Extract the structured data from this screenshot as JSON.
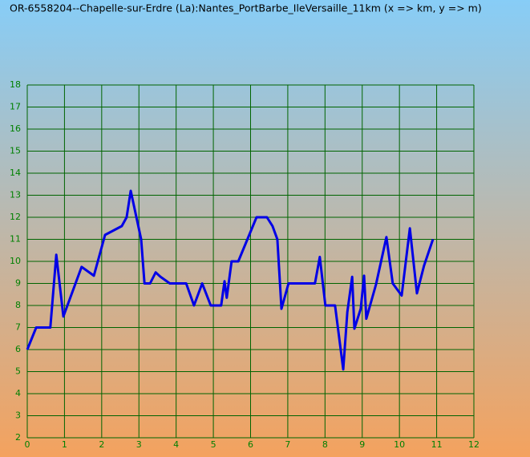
{
  "chart_data": {
    "type": "line",
    "title": "OR-6558204--Chapelle-sur-Erdre (La):Nantes_PortBarbe_IleVersaille_11km (x => km, y => m)",
    "x": [
      0,
      0.24,
      0.62,
      0.78,
      0.97,
      1.46,
      1.79,
      2.09,
      2.54,
      2.67,
      2.78,
      3.06,
      3.15,
      3.3,
      3.45,
      3.58,
      3.83,
      4.27,
      4.48,
      4.7,
      4.93,
      5.21,
      5.3,
      5.36,
      5.49,
      5.67,
      6.16,
      6.44,
      6.59,
      6.72,
      6.83,
      7.02,
      7.73,
      7.86,
      8.01,
      8.27,
      8.49,
      8.6,
      8.73,
      8.79,
      8.96,
      9.05,
      9.11,
      9.37,
      9.65,
      9.82,
      10.06,
      10.28,
      10.47,
      10.66,
      10.9
    ],
    "series": [
      {
        "color": "#0000e6",
        "values": [
          6,
          7,
          7,
          10.3,
          7.5,
          9.75,
          9.35,
          11.2,
          11.6,
          12,
          13.2,
          11,
          9,
          9,
          9.5,
          9.3,
          9,
          9,
          8,
          9,
          8,
          8,
          9.1,
          8.35,
          10,
          10,
          12,
          12,
          11.6,
          11,
          7.85,
          9,
          9,
          10.2,
          8,
          8,
          5.1,
          7.7,
          9.3,
          6.95,
          7.85,
          9.35,
          7.4,
          8.95,
          11.1,
          9,
          8.45,
          11.5,
          8.55,
          9.8,
          11
        ]
      }
    ],
    "xlim": [
      0,
      12
    ],
    "xticks": [
      0,
      1,
      2,
      3,
      4,
      5,
      6,
      7,
      8,
      9,
      10,
      11,
      12
    ],
    "ylim": [
      2,
      18
    ],
    "yticks": [
      2,
      3,
      4,
      5,
      6,
      7,
      8,
      9,
      10,
      11,
      12,
      13,
      14,
      15,
      16,
      17,
      18
    ],
    "grid": true,
    "grid_color": "#006400",
    "tick_label_color": "#008000"
  }
}
